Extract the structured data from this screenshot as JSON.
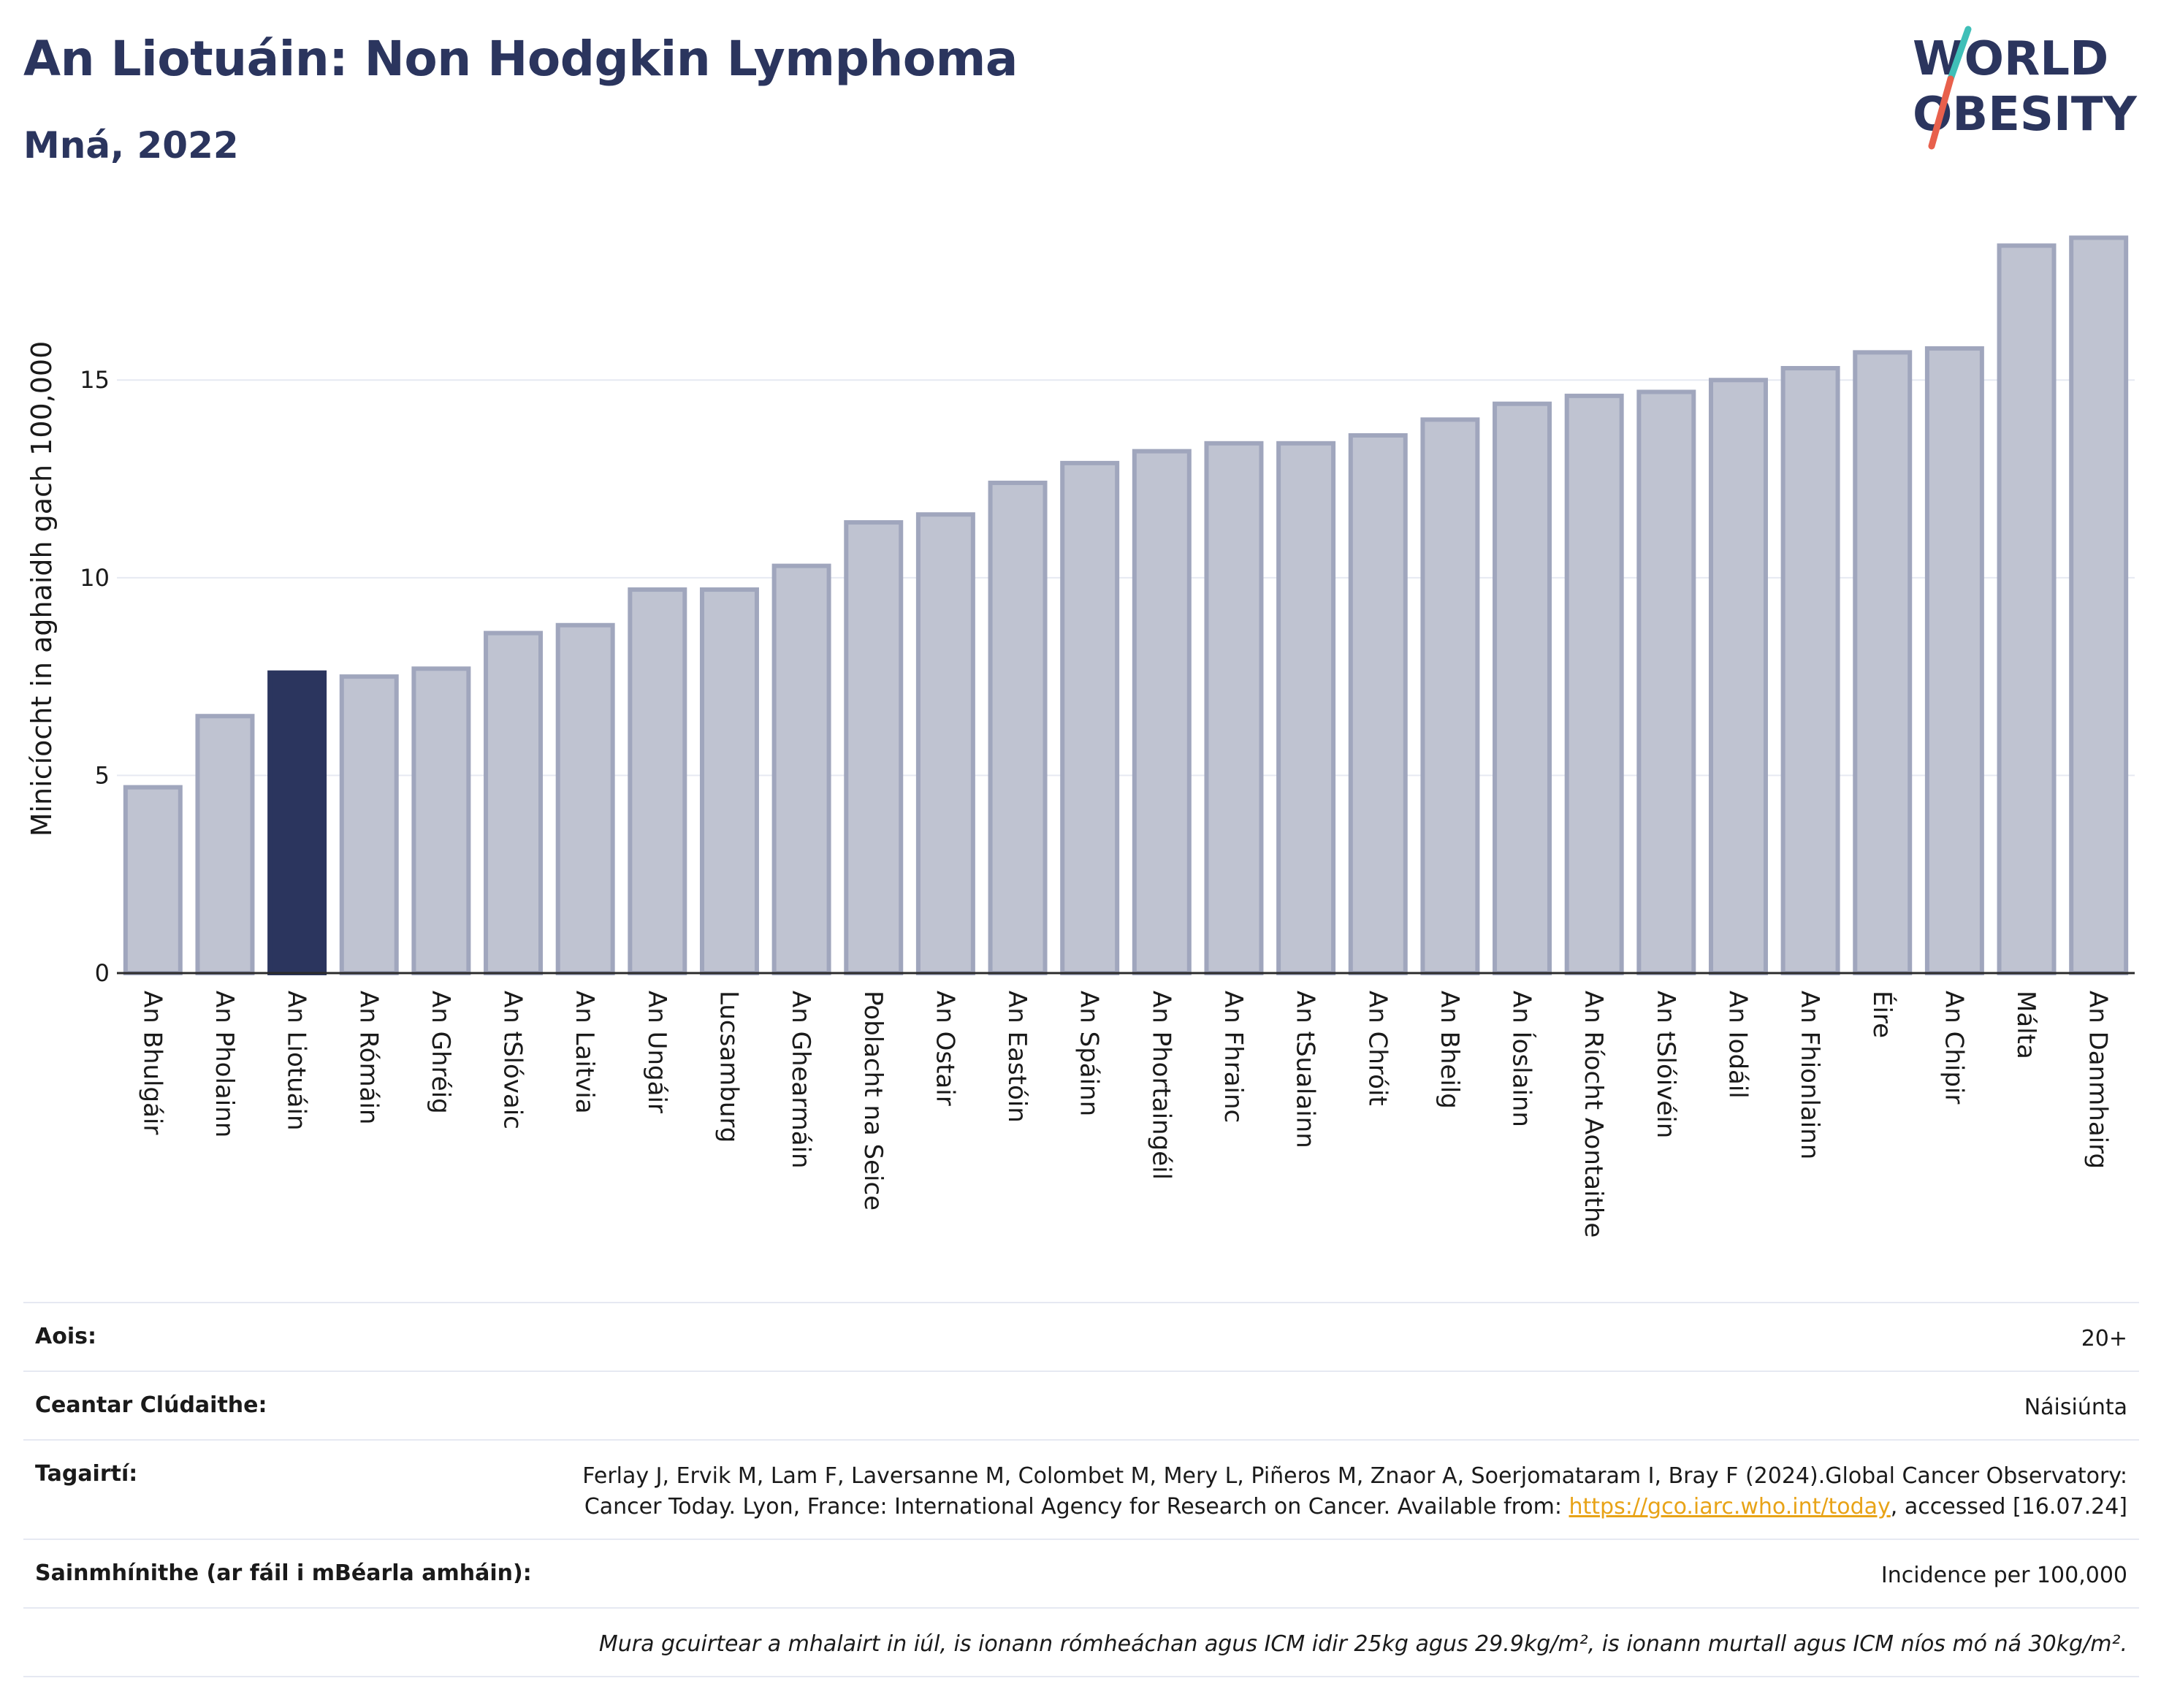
{
  "header": {
    "title": "An Liotuáin: Non Hodgkin Lymphoma",
    "subtitle": "Mná, 2022"
  },
  "logo": {
    "line1": "WORLD",
    "line2": "OBESITY",
    "text_color": "#2b355e",
    "slash_top_color": "#3fbfb8",
    "slash_bottom_color": "#e8604c"
  },
  "chart_data": {
    "type": "bar",
    "ylabel": "Minicíocht in aghaidh gach 100,000",
    "xlabel": "",
    "ylim": [
      0,
      18.7
    ],
    "yticks": [
      0,
      5,
      10,
      15
    ],
    "grid": true,
    "highlight": "An Liotuáin",
    "colors": {
      "bar": "#bfc3d1",
      "bar_border": "#a0a6bd",
      "highlight": "#2b355e",
      "grid": "#e6e9f2",
      "axis": "#2b2b2b"
    },
    "categories": [
      "An Bhulgáir",
      "An Pholainn",
      "An Liotuáin",
      "An Rómáin",
      "An Ghréig",
      "An tSlóvaic",
      "An Laitvia",
      "An Ungáir",
      "Lucsamburg",
      "An Ghearmáin",
      "Poblacht na Seice",
      "An Ostair",
      "An Eastóin",
      "An Spáinn",
      "An Phortaingéil",
      "An Fhrainc",
      "An tSualainn",
      "An Chróit",
      "An Bheilg",
      "An Íoslainn",
      "An Ríocht Aontaithe",
      "An tSlóivéin",
      "An Iodáil",
      "An Fhionlainn",
      "Éire",
      "An Chipir",
      "Málta",
      "An Danmhairg"
    ],
    "values": [
      4.7,
      6.5,
      7.6,
      7.5,
      7.7,
      8.6,
      8.8,
      9.7,
      9.7,
      10.3,
      11.4,
      11.6,
      12.4,
      12.9,
      13.2,
      13.4,
      13.4,
      13.6,
      14.0,
      14.4,
      14.6,
      14.7,
      15.0,
      15.3,
      15.7,
      15.8,
      18.4,
      18.6
    ]
  },
  "info": {
    "age": {
      "label": "Aois:",
      "value": "20+"
    },
    "area": {
      "label": "Ceantar Clúdaithe:",
      "value": "Náisiúnta"
    },
    "refs": {
      "label": "Tagairtí:",
      "text": "Ferlay J, Ervik M, Lam F, Laversanne M, Colombet M, Mery L, Piñeros M, Znaor A, Soerjomataram I, Bray F (2024).Global Cancer Observatory: Cancer Today. Lyon, France: International Agency for Research on Cancer. Available from: ",
      "link": "https://gco.iarc.who.int/today",
      "suffix": ", accessed [16.07.24]"
    },
    "defs": {
      "label": "Sainmhínithe (ar fáil i mBéarla amháin):",
      "value": "Incidence per 100,000"
    },
    "note": "Mura gcuirtear a mhalairt in iúl, is ionann rómheáchan agus ICM idir 25kg agus 29.9kg/m², is ionann murtall agus ICM níos mó ná 30kg/m²."
  }
}
